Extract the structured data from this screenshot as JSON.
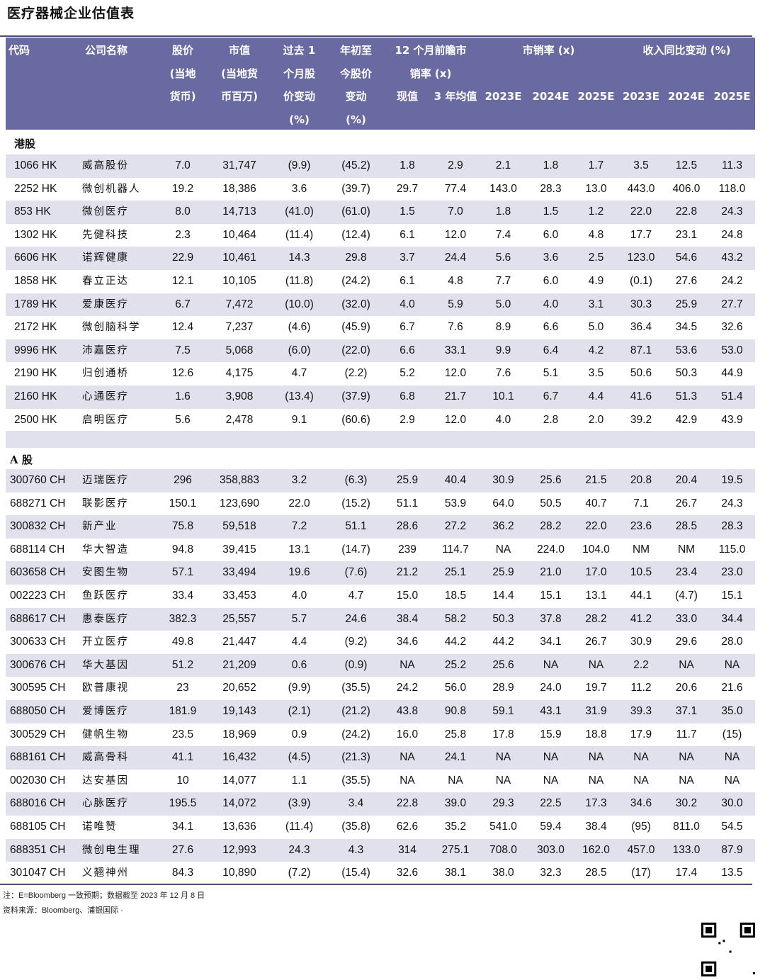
{
  "title": "医疗器械企业估值表",
  "header": {
    "code": "代码",
    "name": "公司名称",
    "price": "股价\n(当地\n货币)",
    "mktcap": "市值\n(当地货\n币百万)",
    "chg1m": "过去 1\n个月股\n价变动\n(%)",
    "ytd": "年初至\n今股价\n变动\n(%)",
    "fwd_ps": "12 个月前瞻市\n销率 (x)",
    "fwd_now": "现值",
    "fwd_3y": "3 年均值",
    "ps": "市销率 (x)",
    "rev": "收入同比变动 (%)",
    "years": [
      "2023E",
      "2024E",
      "2025E",
      "2023E",
      "2024E",
      "2025E"
    ]
  },
  "sections": [
    {
      "label": "港股",
      "rows": [
        [
          "1066 HK",
          "威高股份",
          "7.0",
          "31,747",
          "(9.9)",
          "(45.2)",
          "1.8",
          "2.9",
          "2.1",
          "1.8",
          "1.7",
          "3.5",
          "12.5",
          "11.3"
        ],
        [
          "2252 HK",
          "微创机器人",
          "19.2",
          "18,386",
          "3.6",
          "(39.7)",
          "29.7",
          "77.4",
          "143.0",
          "28.3",
          "13.0",
          "443.0",
          "406.0",
          "118.0"
        ],
        [
          "853 HK",
          "微创医疗",
          "8.0",
          "14,713",
          "(41.0)",
          "(61.0)",
          "1.5",
          "7.0",
          "1.8",
          "1.5",
          "1.2",
          "22.0",
          "22.8",
          "24.3"
        ],
        [
          "1302 HK",
          "先健科技",
          "2.3",
          "10,464",
          "(11.4)",
          "(12.4)",
          "6.1",
          "12.0",
          "7.4",
          "6.0",
          "4.8",
          "17.7",
          "23.1",
          "24.8"
        ],
        [
          "6606 HK",
          "诺辉健康",
          "22.9",
          "10,461",
          "14.3",
          "29.8",
          "3.7",
          "24.4",
          "5.6",
          "3.6",
          "2.5",
          "123.0",
          "54.6",
          "43.2"
        ],
        [
          "1858 HK",
          "春立正达",
          "12.1",
          "10,105",
          "(11.8)",
          "(24.2)",
          "6.1",
          "4.8",
          "7.7",
          "6.0",
          "4.9",
          "(0.1)",
          "27.6",
          "24.2"
        ],
        [
          "1789 HK",
          "爱康医疗",
          "6.7",
          "7,472",
          "(10.0)",
          "(32.0)",
          "4.0",
          "5.9",
          "5.0",
          "4.0",
          "3.1",
          "30.3",
          "25.9",
          "27.7"
        ],
        [
          "2172 HK",
          "微创脑科学",
          "12.4",
          "7,237",
          "(4.6)",
          "(45.9)",
          "6.7",
          "7.6",
          "8.9",
          "6.6",
          "5.0",
          "36.4",
          "34.5",
          "32.6"
        ],
        [
          "9996 HK",
          "沛嘉医疗",
          "7.5",
          "5,068",
          "(6.0)",
          "(22.0)",
          "6.6",
          "33.1",
          "9.9",
          "6.4",
          "4.2",
          "87.1",
          "53.6",
          "53.0"
        ],
        [
          "2190 HK",
          "归创通桥",
          "12.6",
          "4,175",
          "4.7",
          "(2.2)",
          "5.2",
          "12.0",
          "7.6",
          "5.1",
          "3.5",
          "50.6",
          "50.3",
          "44.9"
        ],
        [
          "2160 HK",
          "心通医疗",
          "1.6",
          "3,908",
          "(13.4)",
          "(37.9)",
          "6.8",
          "21.7",
          "10.1",
          "6.7",
          "4.4",
          "41.6",
          "51.3",
          "51.4"
        ],
        [
          "2500 HK",
          "启明医疗",
          "5.6",
          "2,478",
          "9.1",
          "(60.6)",
          "2.9",
          "12.0",
          "4.0",
          "2.8",
          "2.0",
          "39.2",
          "42.9",
          "43.9"
        ]
      ]
    },
    {
      "label": "A 股",
      "rows": [
        [
          "300760 CH",
          "迈瑞医疗",
          "296",
          "358,883",
          "3.2",
          "(6.3)",
          "25.9",
          "40.4",
          "30.9",
          "25.6",
          "21.5",
          "20.8",
          "20.4",
          "19.5"
        ],
        [
          "688271 CH",
          "联影医疗",
          "150.1",
          "123,690",
          "22.0",
          "(15.2)",
          "51.1",
          "53.9",
          "64.0",
          "50.5",
          "40.7",
          "7.1",
          "26.7",
          "24.3"
        ],
        [
          "300832 CH",
          "新产业",
          "75.8",
          "59,518",
          "7.2",
          "51.1",
          "28.6",
          "27.2",
          "36.2",
          "28.2",
          "22.0",
          "23.6",
          "28.5",
          "28.3"
        ],
        [
          "688114 CH",
          "华大智造",
          "94.8",
          "39,415",
          "13.1",
          "(14.7)",
          "239",
          "114.7",
          "NA",
          "224.0",
          "104.0",
          "NM",
          "NM",
          "115.0"
        ],
        [
          "603658 CH",
          "安图生物",
          "57.1",
          "33,494",
          "19.6",
          "(7.6)",
          "21.2",
          "25.1",
          "25.9",
          "21.0",
          "17.0",
          "10.5",
          "23.4",
          "23.0"
        ],
        [
          "002223 CH",
          "鱼跃医疗",
          "33.4",
          "33,453",
          "4.0",
          "4.7",
          "15.0",
          "18.5",
          "14.4",
          "15.1",
          "13.1",
          "44.1",
          "(4.7)",
          "15.1"
        ],
        [
          "688617 CH",
          "惠泰医疗",
          "382.3",
          "25,557",
          "5.7",
          "24.6",
          "38.4",
          "58.2",
          "50.3",
          "37.8",
          "28.2",
          "41.2",
          "33.0",
          "34.4"
        ],
        [
          "300633 CH",
          "开立医疗",
          "49.8",
          "21,447",
          "4.4",
          "(9.2)",
          "34.6",
          "44.2",
          "44.2",
          "34.1",
          "26.7",
          "30.9",
          "29.6",
          "28.0"
        ],
        [
          "300676 CH",
          "华大基因",
          "51.2",
          "21,209",
          "0.6",
          "(0.9)",
          "NA",
          "25.2",
          "25.6",
          "NA",
          "NA",
          "2.2",
          "NA",
          "NA"
        ],
        [
          "300595 CH",
          "欧普康视",
          "23",
          "20,652",
          "(9.9)",
          "(35.5)",
          "24.2",
          "56.0",
          "28.9",
          "24.0",
          "19.7",
          "11.2",
          "20.6",
          "21.6"
        ],
        [
          "688050 CH",
          "爱博医疗",
          "181.9",
          "19,143",
          "(2.1)",
          "(21.2)",
          "43.8",
          "90.8",
          "59.1",
          "43.1",
          "31.9",
          "39.3",
          "37.1",
          "35.0"
        ],
        [
          "300529 CH",
          "健帆生物",
          "23.5",
          "18,969",
          "0.9",
          "(24.2)",
          "16.0",
          "25.8",
          "17.8",
          "15.9",
          "18.8",
          "17.9",
          "11.7",
          "(15)"
        ],
        [
          "688161 CH",
          "威高骨科",
          "41.1",
          "16,432",
          "(4.5)",
          "(21.3)",
          "NA",
          "24.1",
          "NA",
          "NA",
          "NA",
          "NA",
          "NA",
          "NA"
        ],
        [
          "002030 CH",
          "达安基因",
          "10",
          "14,077",
          "1.1",
          "(35.5)",
          "NA",
          "NA",
          "NA",
          "NA",
          "NA",
          "NA",
          "NA",
          "NA"
        ],
        [
          "688016 CH",
          "心脉医疗",
          "195.5",
          "14,072",
          "(3.9)",
          "3.4",
          "22.8",
          "39.0",
          "29.3",
          "22.5",
          "17.3",
          "34.6",
          "30.2",
          "30.0"
        ],
        [
          "688105 CH",
          "诺唯赞",
          "34.1",
          "13,636",
          "(11.4)",
          "(35.8)",
          "62.6",
          "35.2",
          "541.0",
          "59.4",
          "38.4",
          "(95)",
          "811.0",
          "54.5"
        ],
        [
          "688351 CH",
          "微创电生理",
          "27.6",
          "12,993",
          "24.3",
          "4.3",
          "314",
          "275.1",
          "708.0",
          "303.0",
          "162.0",
          "457.0",
          "133.0",
          "87.9"
        ],
        [
          "301047 CH",
          "义翘神州",
          "84.3",
          "10,890",
          "(7.2)",
          "(15.4)",
          "32.6",
          "38.1",
          "38.0",
          "32.3",
          "28.5",
          "(17)",
          "17.4",
          "13.5"
        ]
      ]
    }
  ],
  "notes": [
    "注：E=Bloomberg 一致预期；数据截至 2023 年 12 月 8 日",
    "资料来源：Bloomberg、浦银国际 ·"
  ],
  "colors": {
    "header_bg": "#6a6aa3",
    "row_shade": "#e1e1ee",
    "rule": "#4a4a80"
  }
}
